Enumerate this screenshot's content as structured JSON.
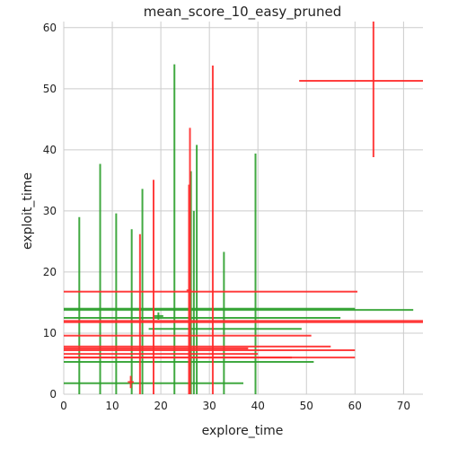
{
  "chart_data": {
    "type": "scatter",
    "title": "mean_score_10_easy_pruned",
    "xlabel": "explore_time",
    "ylabel": "exploit_time",
    "xlim": [
      0,
      74
    ],
    "ylim": [
      0,
      61
    ],
    "xticks": [
      0,
      10,
      20,
      30,
      40,
      50,
      60,
      70
    ],
    "yticks": [
      0,
      10,
      20,
      30,
      40,
      50,
      60
    ],
    "grid": true,
    "colors": {
      "green": "#2ca02c",
      "red": "#ff2a2a"
    },
    "series": [
      {
        "color": "green",
        "points": [
          {
            "x": 3.2,
            "y": 14.0,
            "xlo": 3.2,
            "xhi": 3.2,
            "ylo": 0.0,
            "yhi": 29.0
          },
          {
            "x": 7.5,
            "y": 14.0,
            "xlo": 7.5,
            "xhi": 7.5,
            "ylo": 0.0,
            "yhi": 37.7
          },
          {
            "x": 10.8,
            "y": 11.0,
            "xlo": 10.8,
            "xhi": 10.8,
            "ylo": 0.0,
            "yhi": 29.6
          },
          {
            "x": 14.0,
            "y": 7.5,
            "xlo": 14.0,
            "xhi": 14.0,
            "ylo": 0.0,
            "yhi": 27.0
          },
          {
            "x": 16.2,
            "y": 13.0,
            "xlo": 16.2,
            "xhi": 16.2,
            "ylo": 0.0,
            "yhi": 33.6
          },
          {
            "x": 19.5,
            "y": 12.8,
            "xlo": 18.5,
            "xhi": 20.5,
            "ylo": 12.2,
            "yhi": 13.4
          },
          {
            "x": 22.8,
            "y": 11.0,
            "xlo": 22.8,
            "xhi": 22.8,
            "ylo": 0.0,
            "yhi": 54.0
          },
          {
            "x": 26.2,
            "y": 10.0,
            "xlo": 26.2,
            "xhi": 26.2,
            "ylo": 0.0,
            "yhi": 36.5
          },
          {
            "x": 26.8,
            "y": 10.0,
            "xlo": 26.8,
            "xhi": 26.8,
            "ylo": 0.0,
            "yhi": 30.0
          },
          {
            "x": 27.4,
            "y": 10.0,
            "xlo": 27.4,
            "xhi": 27.4,
            "ylo": 0.0,
            "yhi": 40.8
          },
          {
            "x": 33.0,
            "y": 10.0,
            "xlo": 33.0,
            "xhi": 33.0,
            "ylo": 0.0,
            "yhi": 23.3
          },
          {
            "x": 39.5,
            "y": 10.0,
            "xlo": 39.5,
            "xhi": 39.5,
            "ylo": 0.0,
            "yhi": 39.4
          },
          {
            "x": 27.0,
            "y": 14.0,
            "xlo": 0.0,
            "xhi": 60.0,
            "ylo": 14.0,
            "yhi": 14.0
          },
          {
            "x": 30.0,
            "y": 13.8,
            "xlo": 0.0,
            "xhi": 72.0,
            "ylo": 13.8,
            "yhi": 13.8
          },
          {
            "x": 28.0,
            "y": 12.5,
            "xlo": 0.0,
            "xhi": 57.0,
            "ylo": 12.5,
            "yhi": 12.5
          },
          {
            "x": 30.0,
            "y": 10.7,
            "xlo": 17.5,
            "xhi": 49.0,
            "ylo": 10.7,
            "yhi": 10.7
          },
          {
            "x": 22.0,
            "y": 5.3,
            "xlo": 0.0,
            "xhi": 51.5,
            "ylo": 5.3,
            "yhi": 5.3
          },
          {
            "x": 15.0,
            "y": 1.8,
            "xlo": 0.0,
            "xhi": 37.0,
            "ylo": 1.8,
            "yhi": 1.8
          }
        ]
      },
      {
        "color": "red",
        "points": [
          {
            "x": 63.8,
            "y": 51.3,
            "xlo": 48.5,
            "xhi": 74.0,
            "ylo": 38.8,
            "yhi": 61.0
          },
          {
            "x": 30.7,
            "y": 20.0,
            "xlo": 30.7,
            "xhi": 30.7,
            "ylo": 0.0,
            "yhi": 53.8
          },
          {
            "x": 26.0,
            "y": 20.0,
            "xlo": 26.0,
            "xhi": 26.0,
            "ylo": 0.0,
            "yhi": 43.6
          },
          {
            "x": 25.8,
            "y": 17.0,
            "xlo": 25.3,
            "xhi": 26.3,
            "ylo": 0.0,
            "yhi": 34.3
          },
          {
            "x": 18.5,
            "y": 10.0,
            "xlo": 18.5,
            "xhi": 18.5,
            "ylo": 0.0,
            "yhi": 35.1
          },
          {
            "x": 15.7,
            "y": 10.0,
            "xlo": 15.7,
            "xhi": 15.7,
            "ylo": 0.0,
            "yhi": 26.2
          },
          {
            "x": 13.8,
            "y": 2.0,
            "xlo": 13.2,
            "xhi": 14.4,
            "ylo": 1.0,
            "yhi": 3.0
          },
          {
            "x": 30.0,
            "y": 16.8,
            "xlo": 0.0,
            "xhi": 60.5,
            "ylo": 16.8,
            "yhi": 16.8
          },
          {
            "x": 37.0,
            "y": 12.0,
            "xlo": 0.0,
            "xhi": 74.0,
            "ylo": 12.0,
            "yhi": 12.0
          },
          {
            "x": 37.0,
            "y": 11.8,
            "xlo": 0.0,
            "xhi": 74.0,
            "ylo": 11.8,
            "yhi": 11.8
          },
          {
            "x": 25.0,
            "y": 9.6,
            "xlo": 0.0,
            "xhi": 51.0,
            "ylo": 9.6,
            "yhi": 9.6
          },
          {
            "x": 27.5,
            "y": 7.8,
            "xlo": 0.0,
            "xhi": 55.0,
            "ylo": 7.8,
            "yhi": 7.8
          },
          {
            "x": 19.0,
            "y": 7.5,
            "xlo": 0.0,
            "xhi": 38.0,
            "ylo": 7.5,
            "yhi": 7.5
          },
          {
            "x": 30.0,
            "y": 7.2,
            "xlo": 0.0,
            "xhi": 60.0,
            "ylo": 7.2,
            "yhi": 7.2
          },
          {
            "x": 20.0,
            "y": 6.6,
            "xlo": 0.0,
            "xhi": 40.0,
            "ylo": 6.6,
            "yhi": 6.6
          },
          {
            "x": 23.5,
            "y": 6.0,
            "xlo": 0.0,
            "xhi": 47.0,
            "ylo": 6.0,
            "yhi": 6.0
          },
          {
            "x": 30.0,
            "y": 6.0,
            "xlo": 0.0,
            "xhi": 60.0,
            "ylo": 6.0,
            "yhi": 6.0
          }
        ]
      }
    ]
  }
}
